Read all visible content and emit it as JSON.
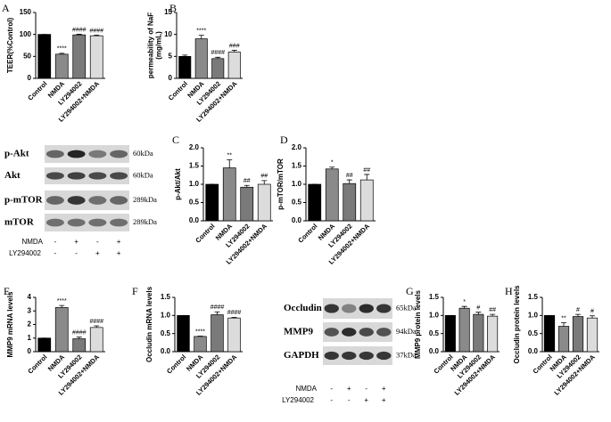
{
  "chart_data": [
    {
      "type": "bar",
      "panel": "A",
      "ylabel": "TEER(%Control)",
      "categories": [
        "Control",
        "NMDA",
        "LY294002",
        "LY294002+NMDA"
      ],
      "values": [
        100,
        55,
        99,
        97
      ],
      "errors": [
        0,
        2,
        1.5,
        1.5
      ],
      "colors": [
        "#000000",
        "#8a8a8a",
        "#7a7a7a",
        "#dcdcdc"
      ],
      "annotations": [
        null,
        "****",
        "####",
        "####"
      ],
      "ylim": [
        0,
        150
      ],
      "yticks": [
        0,
        50,
        100,
        150
      ]
    },
    {
      "type": "bar",
      "panel": "B",
      "ylabel": [
        "permeability of NaF",
        "(mg/mL)"
      ],
      "categories": [
        "Control",
        "NMDA",
        "LY294002",
        "LY294002+NMDA"
      ],
      "values": [
        5,
        9,
        4.5,
        6
      ],
      "errors": [
        0.3,
        0.8,
        0.3,
        0.4
      ],
      "colors": [
        "#000000",
        "#8a8a8a",
        "#7a7a7a",
        "#dcdcdc"
      ],
      "annotations": [
        null,
        "****",
        "####",
        "###"
      ],
      "ylim": [
        0,
        15
      ],
      "yticks": [
        0,
        5,
        10,
        15
      ]
    },
    {
      "type": "bar",
      "panel": "C",
      "ylabel": "p-Akt/Akt",
      "categories": [
        "Control",
        "NMDA",
        "LY294002",
        "LY294002+NMDA"
      ],
      "values": [
        1.0,
        1.45,
        0.92,
        1.0
      ],
      "errors": [
        0,
        0.22,
        0.05,
        0.1
      ],
      "colors": [
        "#000000",
        "#8a8a8a",
        "#7a7a7a",
        "#dcdcdc"
      ],
      "annotations": [
        null,
        "**",
        "##",
        "##"
      ],
      "ylim": [
        0,
        2
      ],
      "yticks": [
        {
          "value": 0,
          "label": "0.0"
        },
        0.5,
        {
          "value": 1,
          "label": "1.0"
        },
        1.5,
        {
          "value": 2,
          "label": "2.0"
        }
      ]
    },
    {
      "type": "bar",
      "panel": "D",
      "ylabel": "p-mTOR/mTOR",
      "categories": [
        "Control",
        "NMDA",
        "LY294002",
        "LY294002+NMDA"
      ],
      "values": [
        1.0,
        1.42,
        1.02,
        1.12
      ],
      "errors": [
        0,
        0.05,
        0.1,
        0.15
      ],
      "colors": [
        "#000000",
        "#8a8a8a",
        "#7a7a7a",
        "#dcdcdc"
      ],
      "annotations": [
        null,
        "*",
        "##",
        "##"
      ],
      "ylim": [
        0,
        2
      ],
      "yticks": [
        {
          "value": 0,
          "label": "0.0"
        },
        0.5,
        {
          "value": 1,
          "label": "1.0"
        },
        1.5,
        {
          "value": 2,
          "label": "2.0"
        }
      ]
    },
    {
      "type": "bar",
      "panel": "E",
      "ylabel": "MMP9 mRNA levels",
      "categories": [
        "Control",
        "NMDA",
        "LY294002",
        "LY294002+NMDA"
      ],
      "values": [
        1.0,
        3.25,
        0.95,
        1.78
      ],
      "errors": [
        0,
        0.15,
        0.12,
        0.12
      ],
      "colors": [
        "#000000",
        "#8a8a8a",
        "#7a7a7a",
        "#dcdcdc"
      ],
      "annotations": [
        null,
        "****",
        "####",
        "####"
      ],
      "ylim": [
        0,
        4
      ],
      "yticks": [
        0,
        1,
        2,
        3,
        4
      ]
    },
    {
      "type": "bar",
      "panel": "F",
      "ylabel": "Occludin mRNA levels",
      "categories": [
        "Control",
        "NMDA",
        "LY294002",
        "LY294002+NMDA"
      ],
      "values": [
        1.0,
        0.42,
        1.02,
        0.93
      ],
      "errors": [
        0,
        0.01,
        0.08,
        0.02
      ],
      "colors": [
        "#000000",
        "#8a8a8a",
        "#7a7a7a",
        "#dcdcdc"
      ],
      "annotations": [
        null,
        "****",
        "####",
        "####"
      ],
      "ylim": [
        0,
        1.5
      ],
      "yticks": [
        {
          "value": 0,
          "label": "0.0"
        },
        0.5,
        {
          "value": 1,
          "label": "1.0"
        },
        1.5
      ]
    },
    {
      "type": "bar",
      "panel": "G",
      "ylabel": "MMP9 protein levels",
      "categories": [
        "Control",
        "NMDA",
        "LY294002",
        "LY294002+NMDA"
      ],
      "values": [
        1.0,
        1.2,
        1.03,
        0.98
      ],
      "errors": [
        0,
        0.05,
        0.06,
        0.05
      ],
      "colors": [
        "#000000",
        "#8a8a8a",
        "#7a7a7a",
        "#dcdcdc"
      ],
      "annotations": [
        null,
        "*",
        "#",
        "##"
      ],
      "ylim": [
        0,
        1.5
      ],
      "yticks": [
        {
          "value": 0,
          "label": "0.0"
        },
        0.5,
        {
          "value": 1,
          "label": "1.0"
        },
        1.5
      ]
    },
    {
      "type": "bar",
      "panel": "H",
      "ylabel": "Occludin protein levels",
      "categories": [
        "Control",
        "NMDA",
        "LY294002",
        "LY294002+NMDA"
      ],
      "values": [
        1.0,
        0.7,
        0.97,
        0.93
      ],
      "errors": [
        0,
        0.1,
        0.06,
        0.06
      ],
      "colors": [
        "#000000",
        "#8a8a8a",
        "#7a7a7a",
        "#dcdcdc"
      ],
      "annotations": [
        null,
        "**",
        "#",
        "#"
      ],
      "ylim": [
        0,
        1.5
      ],
      "yticks": [
        {
          "value": 0,
          "label": "0.0"
        },
        0.5,
        {
          "value": 1,
          "label": "1.0"
        },
        1.5
      ]
    }
  ],
  "blots": [
    {
      "rows": [
        {
          "label": "p-Akt",
          "size": "60kDa"
        },
        {
          "label": "Akt",
          "size": "60kDa"
        },
        {
          "label": "p-mTOR",
          "size": "289kDa"
        },
        {
          "label": "mTOR",
          "size": "289kDa"
        }
      ],
      "treatments": [
        {
          "name": "NMDA",
          "signs": [
            "-",
            "+",
            "-",
            "+"
          ]
        },
        {
          "name": "LY294002",
          "signs": [
            "-",
            "-",
            "+",
            "+"
          ]
        }
      ]
    },
    {
      "rows": [
        {
          "label": "Occludin",
          "size": "65kDa"
        },
        {
          "label": "MMP9",
          "size": "94kDa"
        },
        {
          "label": "GAPDH",
          "size": "37kDa"
        }
      ],
      "treatments": [
        {
          "name": "NMDA",
          "signs": [
            "-",
            "+",
            "-",
            "+"
          ]
        },
        {
          "name": "LY294002",
          "signs": [
            "-",
            "-",
            "+",
            "+"
          ]
        }
      ]
    }
  ]
}
